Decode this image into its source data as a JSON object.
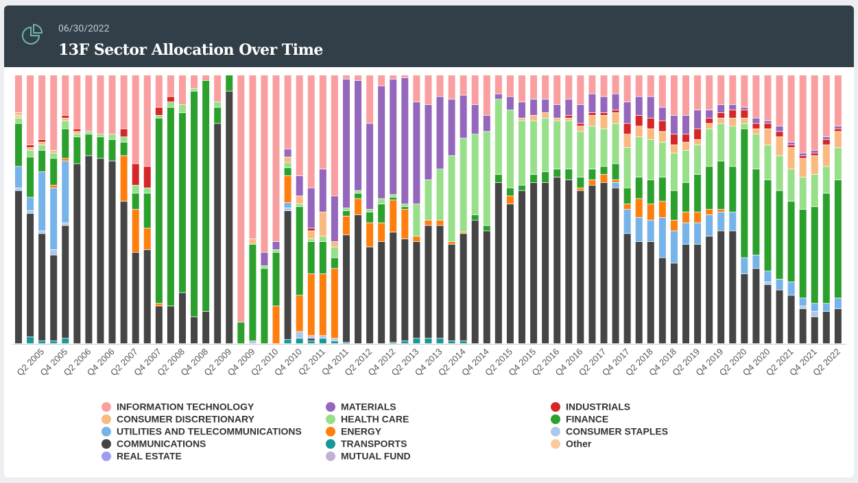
{
  "header": {
    "date": "06/30/2022"
  },
  "chart_data": {
    "type": "stacked_bar",
    "title": "13F Sector Allocation Over Time",
    "categories": [
      null,
      null,
      "Q2 2005",
      null,
      "Q4 2005",
      null,
      "Q2 2006",
      null,
      "Q4 2006",
      null,
      "Q2 2007",
      null,
      "Q4 2007",
      null,
      "Q2 2008",
      null,
      "Q4 2008",
      null,
      "Q2 2009",
      null,
      "Q4 2009",
      null,
      "Q2 2010",
      null,
      "Q4 2010",
      null,
      "Q2 2011",
      null,
      "Q4 2011",
      null,
      "Q2 2012",
      null,
      "Q4 2012",
      null,
      "Q2 2013",
      null,
      "Q4 2013",
      null,
      "Q2 2014",
      null,
      "Q4 2014",
      null,
      "Q2 2015",
      null,
      "Q4 2015",
      null,
      "Q2 2016",
      null,
      "Q4 2016",
      null,
      "Q2 2017",
      null,
      "Q4 2017",
      null,
      "Q2 2018",
      null,
      "Q4 2018",
      null,
      "Q2 2019",
      null,
      "Q4 2019",
      null,
      "Q2 2020",
      null,
      "Q4 2020",
      null,
      "Q2 2021",
      null,
      "Q4 2021",
      null,
      "Q2 2022"
    ],
    "series": [
      {
        "name": "INFORMATION TECHNOLOGY",
        "color": "#fa9fa0",
        "values": [
          14,
          26,
          24,
          28,
          15,
          20,
          21,
          22,
          22,
          20,
          33,
          34,
          12,
          8,
          11,
          5,
          2,
          10,
          0,
          92,
          61,
          66,
          62,
          27.5,
          37.5,
          42,
          35,
          45,
          1.5,
          2,
          18,
          4,
          1.5,
          1,
          10,
          11,
          8,
          9,
          7.5,
          11,
          15,
          7,
          8,
          10,
          9,
          9,
          11,
          9,
          11,
          7,
          8,
          7,
          10,
          8,
          8,
          12,
          15,
          15,
          13,
          13,
          11,
          11,
          12,
          16,
          17,
          19,
          25,
          29,
          28,
          23,
          19
        ]
      },
      {
        "name": "MATERIALS",
        "color": "#9467bd",
        "values": [
          0,
          0,
          0,
          0,
          0,
          0,
          0,
          0,
          0,
          0,
          0,
          0,
          0,
          0,
          0,
          0,
          0,
          0,
          0,
          0,
          0,
          5,
          3,
          3,
          7.5,
          15,
          16,
          17,
          48,
          41,
          32,
          42,
          43,
          47,
          38,
          28,
          27,
          21,
          16,
          11,
          6,
          2,
          5,
          6,
          6,
          5,
          5,
          6,
          7,
          7,
          6,
          6,
          8,
          7,
          8,
          5,
          7,
          7,
          7,
          3,
          3,
          2,
          1,
          2,
          1,
          2,
          1,
          1,
          1,
          1,
          1
        ]
      },
      {
        "name": "INDUSTRIALS",
        "color": "#d62728",
        "values": [
          0,
          1,
          1,
          0,
          1,
          1,
          0,
          0,
          0,
          3,
          8,
          8,
          3,
          2,
          0,
          0,
          0,
          0,
          0,
          0,
          0,
          0,
          0,
          0,
          0,
          1,
          0,
          0,
          0,
          0,
          0,
          0,
          0,
          0,
          0,
          0,
          0,
          0,
          0,
          0,
          0,
          0,
          0,
          0,
          0,
          0,
          0,
          1,
          1,
          1,
          1,
          1,
          4,
          4,
          4,
          4,
          4,
          3,
          4,
          2,
          2,
          3,
          3,
          2,
          2,
          2,
          1,
          1,
          1,
          2,
          1
        ]
      },
      {
        "name": "CONSUMER DISCRETIONARY",
        "color": "#f9b97f",
        "values": [
          1,
          1,
          1,
          1,
          1,
          1,
          0,
          0,
          0,
          0,
          0,
          0,
          0,
          0,
          0,
          0,
          0,
          0,
          0,
          0,
          2,
          0,
          0,
          2,
          3,
          3,
          9,
          2,
          0,
          0,
          0,
          0,
          0,
          0,
          0,
          0,
          0,
          0,
          0,
          0,
          0,
          0,
          0,
          1,
          2,
          2,
          1,
          1,
          2,
          4,
          5,
          4,
          5,
          4,
          4,
          4,
          3,
          3,
          2,
          2,
          2,
          3,
          2,
          2,
          6,
          7,
          8,
          7,
          7,
          8,
          6
        ]
      },
      {
        "name": "HEALTH CARE",
        "color": "#98df8a",
        "values": [
          2,
          2.5,
          2,
          2,
          3,
          1,
          1,
          1,
          2,
          2,
          3,
          2,
          1,
          2,
          3,
          1,
          0,
          2,
          0,
          0,
          0,
          1,
          1,
          2,
          1,
          1,
          2,
          4,
          1,
          1,
          1,
          2,
          1,
          1,
          12,
          15,
          19,
          32,
          35,
          30,
          35,
          28,
          29,
          24,
          20,
          20,
          18,
          18,
          17,
          16,
          14,
          15,
          15,
          15,
          15,
          13,
          14,
          12,
          11,
          14,
          14,
          15,
          2,
          13,
          13,
          13,
          12,
          12,
          12,
          10,
          12
        ]
      },
      {
        "name": "FINANCE",
        "color": "#2ca02c",
        "values": [
          16,
          15,
          8,
          10,
          11,
          10,
          8,
          8,
          8,
          5,
          6,
          13,
          69,
          74,
          67,
          84,
          86,
          6,
          6,
          8,
          36,
          28,
          20,
          3,
          33,
          12,
          12,
          4,
          2,
          2,
          4,
          7,
          1,
          1,
          0,
          0,
          0,
          0,
          0,
          2,
          2,
          3,
          3,
          2,
          3,
          4,
          3,
          4,
          4,
          4,
          3,
          6,
          6,
          8,
          9,
          9,
          11,
          11,
          14,
          16,
          18,
          17,
          48,
          32,
          34,
          33,
          30,
          33,
          36,
          41,
          44
        ]
      },
      {
        "name": "UTILITIES AND TELECOMMUNICATIONS",
        "color": "#76b3e8",
        "values": [
          8,
          5,
          22,
          23,
          23,
          0,
          0,
          0,
          0,
          0,
          0,
          0,
          0,
          0,
          0,
          0,
          0,
          0,
          0,
          0,
          0,
          0,
          0,
          2,
          0,
          0,
          0,
          0,
          0,
          0,
          0,
          0,
          0,
          0,
          0,
          0,
          0,
          0,
          0,
          0,
          0,
          0,
          0,
          0,
          0,
          0,
          0,
          0,
          0,
          0,
          0,
          2,
          9,
          9,
          8,
          15,
          12,
          8,
          8,
          8,
          7,
          7,
          6,
          5,
          4,
          4,
          5,
          3,
          3,
          3,
          4
        ]
      },
      {
        "name": "ENERGY",
        "color": "#ff7f0e",
        "values": [
          0,
          0,
          0,
          1,
          1,
          0,
          0,
          0,
          0,
          17,
          16,
          8,
          1,
          0,
          0,
          0,
          0,
          0,
          0,
          0,
          0,
          0,
          14,
          10,
          13.5,
          23,
          23,
          26,
          7,
          6,
          9,
          7,
          12,
          11,
          2,
          2,
          2,
          1,
          0.5,
          0,
          0,
          0,
          3,
          0,
          0,
          0,
          0,
          0,
          1,
          2,
          3,
          1,
          2,
          7,
          6,
          6,
          4,
          4,
          4,
          2,
          1,
          0,
          0,
          0,
          0,
          0,
          0,
          0,
          0,
          0,
          0
        ]
      },
      {
        "name": "CONSUMER STAPLES",
        "color": "#aec7e8",
        "values": [
          1,
          1,
          1,
          2,
          1,
          0,
          0,
          0,
          0,
          0,
          0,
          0,
          0,
          0,
          0,
          0,
          0,
          0,
          0,
          0,
          1,
          0,
          0,
          1,
          2.5,
          1,
          1,
          1,
          0,
          0,
          0,
          0,
          0,
          0,
          0,
          0,
          0,
          0,
          0,
          0,
          0,
          0,
          0,
          0,
          0,
          0,
          0,
          0,
          0,
          0,
          0,
          0,
          0,
          0,
          0,
          0,
          0,
          0,
          0,
          0,
          0,
          0,
          0,
          0,
          1,
          0,
          0,
          1,
          2,
          0,
          0
        ]
      },
      {
        "name": "COMMUNICATIONS",
        "color": "#454545",
        "values": [
          57,
          46,
          40,
          32,
          42,
          67,
          70,
          69,
          68,
          53,
          34,
          35,
          14,
          14,
          19,
          10,
          12,
          82,
          94,
          0,
          0,
          0,
          0,
          48,
          0,
          1,
          0,
          0,
          40,
          48,
          36,
          38,
          41,
          38,
          36,
          42,
          42,
          36,
          40,
          46,
          42,
          60,
          52,
          57,
          60,
          60,
          62,
          61,
          57,
          59,
          60,
          58,
          41,
          38,
          38,
          32,
          30,
          37,
          37,
          40,
          42,
          42,
          26,
          28,
          22,
          20,
          18,
          13,
          10,
          12,
          13
        ]
      },
      {
        "name": "TRANSPORTS",
        "color": "#17999a",
        "values": [
          0,
          2.5,
          1,
          1,
          2,
          0,
          0,
          0,
          0,
          0,
          0,
          0,
          0,
          0,
          0,
          0,
          0,
          0,
          0,
          0,
          0,
          0,
          0,
          1.5,
          2,
          1,
          2,
          1,
          0.5,
          0,
          0,
          0,
          0.5,
          1,
          2,
          2,
          2,
          1,
          1,
          0,
          0,
          0,
          0,
          0,
          0,
          0,
          0,
          0,
          0,
          0,
          0,
          0,
          0,
          0,
          0,
          0,
          0,
          0,
          0,
          0,
          0,
          0,
          0,
          0,
          0,
          0,
          0,
          0,
          0,
          0,
          0
        ]
      },
      {
        "name": "Other",
        "color": "#fbc99a",
        "values": [
          1,
          0,
          0,
          0,
          0,
          0,
          0,
          0,
          0,
          0,
          0,
          0,
          0,
          0,
          0,
          0,
          0,
          0,
          0,
          0,
          0,
          0,
          0,
          0,
          0,
          0,
          0,
          0,
          0,
          0,
          0,
          0,
          0,
          0,
          0,
          0,
          0,
          0,
          0,
          0,
          0,
          0,
          0,
          0,
          0,
          0,
          0,
          0,
          0,
          0,
          0,
          0,
          0,
          0,
          0,
          0,
          0,
          0,
          0,
          0,
          0,
          0,
          0,
          0,
          0,
          0,
          0,
          0,
          0,
          0,
          0
        ]
      },
      {
        "name": "REAL ESTATE",
        "color": "#9d9cf0",
        "values": [
          0,
          0,
          0,
          0,
          0,
          0,
          0,
          0,
          0,
          0,
          0,
          0,
          0,
          0,
          0,
          0,
          0,
          0,
          0,
          0,
          0,
          0,
          0,
          0,
          0,
          0,
          0,
          0,
          0,
          0,
          0,
          0,
          0,
          0,
          0,
          0,
          0,
          0,
          0,
          0,
          0,
          0,
          0,
          0,
          0,
          0,
          0,
          0,
          0,
          0,
          0,
          0,
          0,
          0,
          0,
          0,
          0,
          0,
          0,
          0,
          0,
          0,
          0,
          0,
          0,
          0,
          0,
          0,
          0,
          0,
          0
        ]
      },
      {
        "name": "MUTUAL FUND",
        "color": "#c5b0d5",
        "values": [
          0,
          0,
          0,
          0,
          0,
          0,
          0,
          0,
          0,
          0,
          0,
          0,
          0,
          0,
          0,
          0,
          0,
          0,
          0,
          0,
          0,
          0,
          0,
          0,
          0,
          0,
          0,
          0,
          0,
          0,
          0,
          0,
          0,
          0,
          0,
          0,
          0,
          0,
          0,
          0,
          0,
          0,
          0,
          0,
          0,
          0,
          0,
          0,
          0,
          0,
          0,
          0,
          0,
          0,
          0,
          0,
          0,
          0,
          0,
          0,
          0,
          0,
          0,
          0,
          0,
          0,
          0,
          0,
          0,
          0,
          0
        ]
      }
    ]
  }
}
